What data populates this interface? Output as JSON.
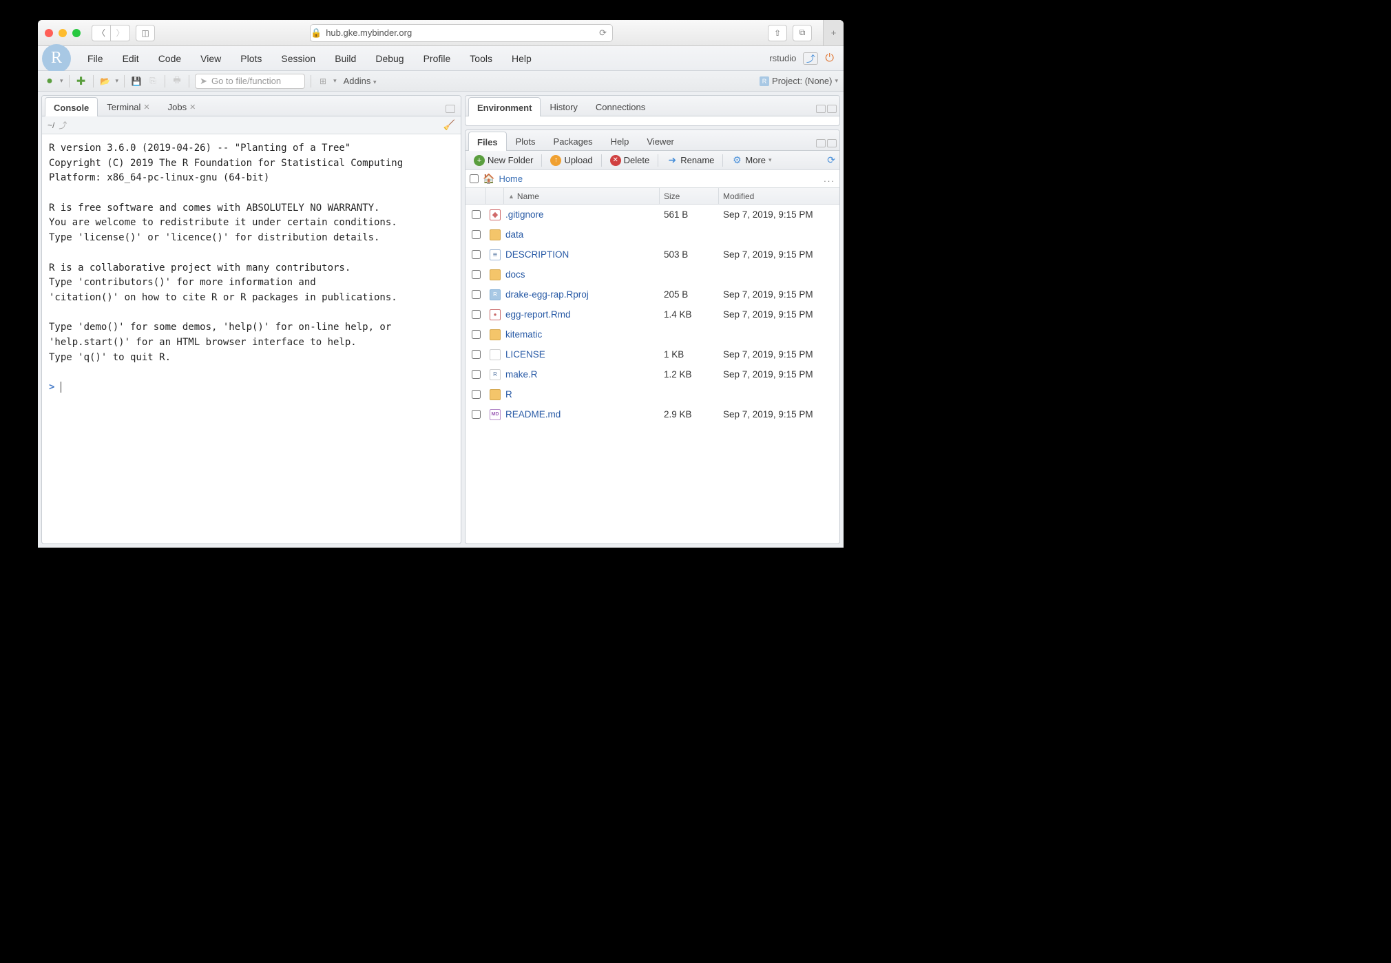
{
  "browser": {
    "url": "hub.gke.mybinder.org"
  },
  "rstudio": {
    "user": "rstudio",
    "menus": [
      "File",
      "Edit",
      "Code",
      "View",
      "Plots",
      "Session",
      "Build",
      "Debug",
      "Profile",
      "Tools",
      "Help"
    ],
    "goto_placeholder": "Go to file/function",
    "addins": "Addins",
    "project": "Project: (None)"
  },
  "left": {
    "tabs": [
      {
        "label": "Console",
        "active": true,
        "closable": false
      },
      {
        "label": "Terminal",
        "active": false,
        "closable": true
      },
      {
        "label": "Jobs",
        "active": false,
        "closable": true
      }
    ],
    "cwd": "~/",
    "console_text": "R version 3.6.0 (2019-04-26) -- \"Planting of a Tree\"\nCopyright (C) 2019 The R Foundation for Statistical Computing\nPlatform: x86_64-pc-linux-gnu (64-bit)\n\nR is free software and comes with ABSOLUTELY NO WARRANTY.\nYou are welcome to redistribute it under certain conditions.\nType 'license()' or 'licence()' for distribution details.\n\nR is a collaborative project with many contributors.\nType 'contributors()' for more information and\n'citation()' on how to cite R or R packages in publications.\n\nType 'demo()' for some demos, 'help()' for on-line help, or\n'help.start()' for an HTML browser interface to help.\nType 'q()' to quit R.\n",
    "prompt": ">"
  },
  "rightTop": {
    "tabs": [
      {
        "label": "Environment",
        "active": true
      },
      {
        "label": "History",
        "active": false
      },
      {
        "label": "Connections",
        "active": false
      }
    ]
  },
  "rightBottom": {
    "tabs": [
      {
        "label": "Files",
        "active": true
      },
      {
        "label": "Plots",
        "active": false
      },
      {
        "label": "Packages",
        "active": false
      },
      {
        "label": "Help",
        "active": false
      },
      {
        "label": "Viewer",
        "active": false
      }
    ],
    "toolbar": {
      "new_folder": "New Folder",
      "upload": "Upload",
      "delete": "Delete",
      "rename": "Rename",
      "more": "More"
    },
    "breadcrumb": "Home",
    "columns": {
      "name": "Name",
      "size": "Size",
      "modified": "Modified"
    },
    "files": [
      {
        "icon": "git",
        "name": ".gitignore",
        "size": "561 B",
        "modified": "Sep 7, 2019, 9:15 PM"
      },
      {
        "icon": "folder",
        "name": "data",
        "size": "",
        "modified": ""
      },
      {
        "icon": "txt",
        "name": "DESCRIPTION",
        "size": "503 B",
        "modified": "Sep 7, 2019, 9:15 PM"
      },
      {
        "icon": "folder",
        "name": "docs",
        "size": "",
        "modified": ""
      },
      {
        "icon": "rproj",
        "name": "drake-egg-rap.Rproj",
        "size": "205 B",
        "modified": "Sep 7, 2019, 9:15 PM"
      },
      {
        "icon": "rmd",
        "name": "egg-report.Rmd",
        "size": "1.4 KB",
        "modified": "Sep 7, 2019, 9:15 PM"
      },
      {
        "icon": "folder",
        "name": "kitematic",
        "size": "",
        "modified": ""
      },
      {
        "icon": "lic",
        "name": "LICENSE",
        "size": "1 KB",
        "modified": "Sep 7, 2019, 9:15 PM"
      },
      {
        "icon": "r",
        "name": "make.R",
        "size": "1.2 KB",
        "modified": "Sep 7, 2019, 9:15 PM"
      },
      {
        "icon": "folder",
        "name": "R",
        "size": "",
        "modified": ""
      },
      {
        "icon": "md",
        "name": "README.md",
        "size": "2.9 KB",
        "modified": "Sep 7, 2019, 9:15 PM"
      }
    ]
  }
}
